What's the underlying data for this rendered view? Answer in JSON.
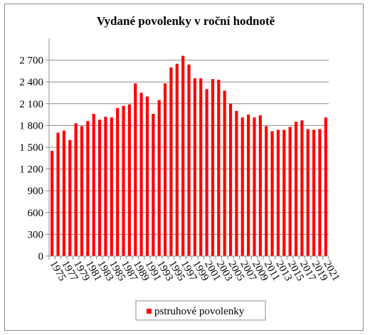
{
  "chart_data": {
    "type": "bar",
    "title": "Vydané povolenky v roční hodnotě",
    "xlabel": "",
    "ylabel": "",
    "ylim": [
      0,
      3000
    ],
    "yticks": [
      0,
      300,
      600,
      900,
      1200,
      1500,
      1800,
      2100,
      2400,
      2700
    ],
    "ytick_labels": [
      "0",
      "300",
      "600",
      "900",
      "1 200",
      "1 500",
      "1 800",
      "2 100",
      "2 400",
      "2 700"
    ],
    "xtick_labels": [
      "1975",
      "1977",
      "1979",
      "1981",
      "1983",
      "1985",
      "1987",
      "1989",
      "1991",
      "1993",
      "1995",
      "1997",
      "1999",
      "2001",
      "2003",
      "2005",
      "2007",
      "2009",
      "2011",
      "2013",
      "2015",
      "2017",
      "2019",
      "2021"
    ],
    "grid": true,
    "legend_position": "bottom",
    "series": [
      {
        "name": "pstruhové povolenky",
        "color": "#ff0000",
        "x": [
          1975,
          1976,
          1977,
          1978,
          1979,
          1980,
          1981,
          1982,
          1983,
          1984,
          1985,
          1986,
          1987,
          1988,
          1989,
          1990,
          1991,
          1992,
          1993,
          1994,
          1995,
          1996,
          1997,
          1998,
          1999,
          2000,
          2001,
          2002,
          2003,
          2004,
          2005,
          2006,
          2007,
          2008,
          2009,
          2010,
          2011,
          2012,
          2013,
          2014,
          2015,
          2016,
          2017,
          2018,
          2019,
          2020,
          2021
        ],
        "values": [
          1450,
          1700,
          1730,
          1600,
          1830,
          1790,
          1860,
          1960,
          1880,
          1920,
          1910,
          2040,
          2070,
          2090,
          2380,
          2250,
          2200,
          1960,
          2150,
          2380,
          2600,
          2650,
          2760,
          2640,
          2450,
          2450,
          2300,
          2440,
          2430,
          2280,
          2100,
          2000,
          1910,
          1950,
          1910,
          1940,
          1790,
          1720,
          1740,
          1740,
          1780,
          1850,
          1870,
          1750,
          1740,
          1750,
          1910
        ]
      }
    ]
  }
}
